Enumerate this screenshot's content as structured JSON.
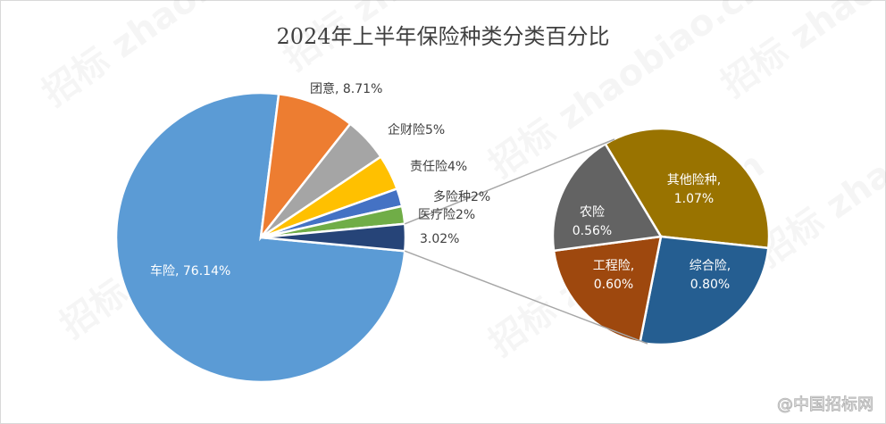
{
  "chart_data": {
    "type": "pie",
    "subtype": "pie-of-pie",
    "title": "2024年上半年保险种类分类百分比",
    "main_pie": [
      {
        "label": "车险",
        "value": 76.14,
        "text": "车险, 76.14%",
        "color": "#5b9bd5"
      },
      {
        "label": "团意",
        "value": 8.71,
        "text": "团意, 8.71%",
        "color": "#ed7d31"
      },
      {
        "label": "企财险",
        "value": 5,
        "text": "企财险5%",
        "color": "#a5a5a5"
      },
      {
        "label": "责任险",
        "value": 4,
        "text": "责任险4%",
        "color": "#ffc000"
      },
      {
        "label": "多险种",
        "value": 2,
        "text": "多险种2%",
        "color": "#4472c4"
      },
      {
        "label": "医疗险",
        "value": 2,
        "text": "医疗险2%",
        "color": "#70ad47"
      },
      {
        "label": "",
        "value": 3.02,
        "text": "3.02%",
        "color": "#264478"
      }
    ],
    "secondary_pie": [
      {
        "label": "其他险种",
        "value": 1.07,
        "text": [
          "其他险种,",
          "1.07%"
        ],
        "color": "#997300"
      },
      {
        "label": "综合险",
        "value": 0.8,
        "text": [
          "综合险,",
          "0.80%"
        ],
        "color": "#255e91"
      },
      {
        "label": "工程险",
        "value": 0.6,
        "text": [
          "工程险,",
          "0.60%"
        ],
        "color": "#9e480e"
      },
      {
        "label": "农险",
        "value": 0.56,
        "text": [
          "农险",
          "0.56%"
        ],
        "color": "#636363"
      }
    ],
    "legend": "none"
  },
  "watermark": {
    "corner": "@中国招标网",
    "background": "招标 zhaobiao.cn"
  }
}
